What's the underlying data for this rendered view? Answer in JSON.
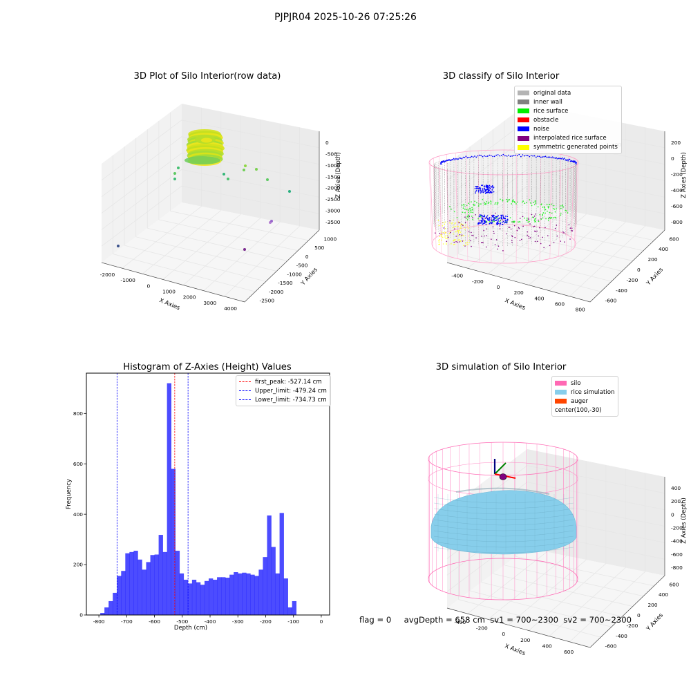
{
  "suptitle": "PJPJR04 2025-10-26 07:25:26",
  "panel1": {
    "title": "3D Plot of Silo Interior(row data)",
    "xlabel": "X Axies",
    "ylabel": "Y Axies",
    "zlabel": "Z Axies (Depth)",
    "xticks": [
      "-2000",
      "-1000",
      "0",
      "1000",
      "2000",
      "3000",
      "4000"
    ],
    "yticks": [
      "1000",
      "500",
      "0",
      "-500",
      "-1000",
      "-1500",
      "-2000",
      "-2500"
    ],
    "zticks": [
      "0",
      "-500",
      "-1000",
      "-1500",
      "-2000",
      "-2500",
      "-3000",
      "-3500"
    ]
  },
  "panel2": {
    "title": "3D classify of Silo Interior",
    "xlabel": "X Axies",
    "ylabel": "Y Axies",
    "zlabel": "Z Axies (Depth)",
    "xticks": [
      "-400",
      "-200",
      "0",
      "200",
      "400",
      "600",
      "800"
    ],
    "yticks": [
      "600",
      "400",
      "200",
      "0",
      "-200",
      "-400",
      "-600"
    ],
    "zticks": [
      "200",
      "0",
      "-200",
      "-400",
      "-600",
      "-800"
    ],
    "partial_ztick": "00",
    "legend": [
      {
        "label": "original data",
        "color": "#b4b4b4"
      },
      {
        "label": "inner wall",
        "color": "#808080"
      },
      {
        "label": "rice surface",
        "color": "#00ee00"
      },
      {
        "label": "obstacle",
        "color": "#ff0000"
      },
      {
        "label": "noise",
        "color": "#0000ff"
      },
      {
        "label": "interpolated rice surface",
        "color": "#800080"
      },
      {
        "label": "symmetric generated points",
        "color": "#ffff00"
      }
    ]
  },
  "panel4": {
    "title": "3D simulation of Silo Interior",
    "xlabel": "X Axies",
    "ylabel": "Y Axies",
    "zlabel": "Z Axies (Depth)",
    "xticks": [
      "-400",
      "-200",
      "0",
      "200",
      "400",
      "600"
    ],
    "yticks": [
      "600",
      "400",
      "200",
      "0",
      "-200",
      "-400",
      "-600"
    ],
    "zticks": [
      "400",
      "200",
      "0",
      "-200",
      "-400",
      "-600",
      "-800"
    ],
    "legend": [
      {
        "label": "silo",
        "color": "#ff69b4"
      },
      {
        "label": "rice simulation",
        "color": "#87ceeb"
      },
      {
        "label": "auger",
        "color": "#ff4500"
      },
      {
        "label": "center(100,-30)",
        "color": ""
      }
    ]
  },
  "status": {
    "text": "flag = 0     avgDepth = 658 cm  sv1 = 700~2300  sv2 = 700~2300"
  },
  "chart_data": [
    {
      "type": "scatter",
      "title": "3D Plot of Silo Interior(row data)",
      "xlabel": "X Axies",
      "ylabel": "Y Axies",
      "zlabel": "Z Axies (Depth)",
      "xlim": [
        -2300,
        4600
      ],
      "ylim": [
        -2800,
        1300
      ],
      "zlim": [
        -3800,
        200
      ]
    },
    {
      "type": "scatter",
      "title": "3D classify of Silo Interior",
      "xlabel": "X Axies",
      "ylabel": "Y Axies",
      "zlabel": "Z Axies (Depth)",
      "xlim": [
        -500,
        850
      ],
      "ylim": [
        -700,
        650
      ],
      "zlim": [
        -900,
        300
      ],
      "series": [
        {
          "name": "original data"
        },
        {
          "name": "inner wall"
        },
        {
          "name": "rice surface"
        },
        {
          "name": "obstacle"
        },
        {
          "name": "noise"
        },
        {
          "name": "interpolated rice surface"
        },
        {
          "name": "symmetric generated points"
        }
      ]
    },
    {
      "type": "bar",
      "title": "Histogram of Z-Axies (Height) Values",
      "xlabel": "Depth (cm)",
      "ylabel": "Frequency",
      "xlim": [
        -845,
        30
      ],
      "ylim": [
        0,
        960
      ],
      "xticks": [
        -800,
        -700,
        -600,
        -500,
        -400,
        -300,
        -200,
        -100,
        0
      ],
      "yticks": [
        0,
        200,
        400,
        600,
        800
      ],
      "bin_start": -795,
      "bin_width": 15,
      "values": [
        8,
        30,
        55,
        88,
        155,
        175,
        245,
        250,
        255,
        220,
        180,
        210,
        238,
        240,
        318,
        250,
        920,
        580,
        255,
        165,
        140,
        125,
        140,
        130,
        120,
        135,
        145,
        140,
        150,
        150,
        148,
        160,
        170,
        165,
        168,
        165,
        160,
        155,
        180,
        230,
        395,
        270,
        165,
        405,
        145,
        30,
        55
      ],
      "lines": [
        {
          "name": "first_peak: -527.14 cm",
          "x": -527.14,
          "color": "#ff0000"
        },
        {
          "name": "Upper_limit: -479.24 cm",
          "x": -479.24,
          "color": "#0000ff"
        },
        {
          "name": "Lower_limit: -734.73 cm",
          "x": -734.73,
          "color": "#0000ff"
        }
      ]
    },
    {
      "type": "scatter",
      "title": "3D simulation of Silo Interior",
      "xlabel": "X Axies",
      "ylabel": "Y Axies",
      "zlabel": "Z Axies (Depth)",
      "xlim": [
        -500,
        750
      ],
      "ylim": [
        -700,
        650
      ],
      "zlim": [
        -900,
        450
      ],
      "series": [
        {
          "name": "silo"
        },
        {
          "name": "rice simulation"
        },
        {
          "name": "auger"
        },
        {
          "name": "center(100,-30)"
        }
      ]
    }
  ]
}
